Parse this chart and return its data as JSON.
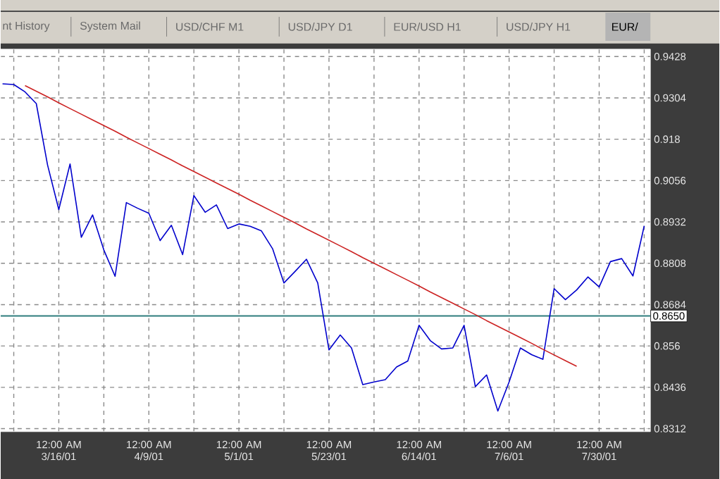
{
  "chart_data": {
    "type": "line",
    "categories": [
      null,
      null,
      null,
      null,
      null,
      "12:00 AM 3/16/01",
      null,
      null,
      null,
      null,
      null,
      null,
      null,
      "12:00 AM 4/9/01",
      null,
      null,
      null,
      null,
      null,
      null,
      null,
      "12:00 AM 5/1/01",
      null,
      null,
      null,
      null,
      null,
      null,
      null,
      "12:00 AM 5/23/01",
      null,
      null,
      null,
      null,
      null,
      null,
      null,
      "12:00 AM 6/14/01",
      null,
      null,
      null,
      null,
      null,
      null,
      null,
      "12:00 AM 7/6/01",
      null,
      null,
      null,
      null,
      null,
      null,
      null,
      "12:00 AM 7/30/01",
      null,
      null,
      null,
      null
    ],
    "series": [
      {
        "color": "#0000cc",
        "values": [
          0.9346,
          0.9344,
          0.9322,
          0.9287,
          0.9103,
          0.8969,
          0.9106,
          0.8886,
          0.8953,
          0.8848,
          0.8769,
          0.899,
          0.8973,
          0.8958,
          0.8876,
          0.8922,
          0.8834,
          0.9011,
          0.8961,
          0.8983,
          0.8912,
          0.8926,
          0.8919,
          0.8905,
          0.8851,
          0.8749,
          0.8784,
          0.882,
          0.8749,
          0.8548,
          0.8593,
          0.8554,
          0.8444,
          0.8452,
          0.8459,
          0.8497,
          0.8515,
          0.8622,
          0.8576,
          0.8551,
          0.8554,
          0.8622,
          0.8438,
          0.8473,
          0.8365,
          0.8452,
          0.8554,
          0.8534,
          0.852,
          0.8732,
          0.8699,
          0.8728,
          0.8767,
          0.8737,
          0.8813,
          0.8822,
          0.877,
          0.892
        ]
      },
      {
        "type": "line",
        "color": "#cc2222",
        "values": [
          null,
          null,
          0.9341,
          0.9324,
          0.9307,
          0.9289,
          0.9272,
          0.9255,
          0.9238,
          0.9221,
          0.9204,
          0.9186,
          0.9169,
          0.9152,
          0.9135,
          0.9118,
          0.91,
          0.9083,
          0.9066,
          0.9049,
          0.9032,
          0.9015,
          0.8997,
          0.898,
          0.8963,
          0.8946,
          0.8929,
          0.8911,
          0.8894,
          0.8877,
          0.886,
          0.8843,
          0.8825,
          0.8808,
          0.8791,
          0.8774,
          0.8757,
          0.874,
          0.8722,
          0.8705,
          0.8688,
          0.8671,
          0.8654,
          0.8636,
          0.8619,
          0.8602,
          0.8585,
          0.8568,
          0.855,
          0.8533,
          0.8516,
          0.8499,
          null,
          null,
          null,
          null,
          null,
          null
        ]
      }
    ],
    "ylim": [
      0.8303,
      0.945
    ],
    "yticks": [
      0.8312,
      0.8436,
      0.856,
      0.8684,
      0.8808,
      0.8932,
      0.9056,
      0.918,
      0.9304,
      0.9428
    ],
    "grid": true,
    "ref_lines": [
      {
        "axis": "y",
        "value": 0.865,
        "label": "0.8650",
        "color": "#2e7d7d"
      }
    ],
    "annotations": [
      "nt History",
      "System Mail",
      "USD/CHF M1",
      "USD/JPY D1",
      "EUR/USD H1",
      "USD/JPY H1",
      "EUR/"
    ]
  }
}
